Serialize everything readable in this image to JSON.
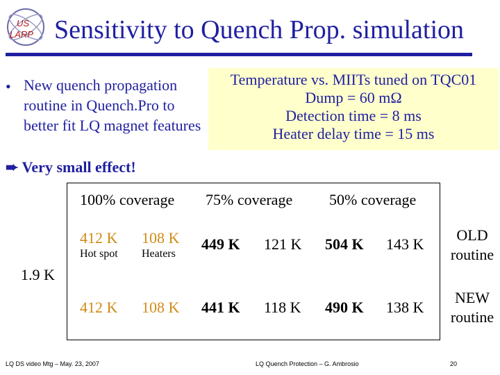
{
  "logo": {
    "text_top": "US",
    "text_bottom": "LARP"
  },
  "title": "Sensitivity to Quench Prop. simulation",
  "bullet": {
    "text": "New quench propagation routine in Quench.Pro to better fit LQ magnet features",
    "effect": "Very small effect!"
  },
  "note": {
    "lines": [
      "Temperature vs. MIITs tuned on TQC01",
      "Dump = 60 mΩ",
      "Detection time = 8 ms",
      "Heater delay time = 15 ms"
    ]
  },
  "table": {
    "headers": [
      "100% coverage",
      "75% coverage",
      "50% coverage"
    ],
    "temperature": "1.9 K",
    "sub_labels": {
      "hot_spot": "Hot spot",
      "heaters": "Heaters"
    },
    "rows": [
      {
        "values": [
          "412 K",
          "108 K",
          "449 K",
          "121 K",
          "504 K",
          "143 K"
        ],
        "label": [
          "OLD",
          "routine"
        ]
      },
      {
        "values": [
          "412 K",
          "108 K",
          "441 K",
          "118 K",
          "490 K",
          "138 K"
        ],
        "label": [
          "NEW",
          "routine"
        ]
      }
    ]
  },
  "footer": {
    "left": "LQ DS video Mtg – May. 23, 2007",
    "center": "LQ Quench Protection – G. Ambrosio",
    "page": "20"
  },
  "colors": {
    "title_blue": "#1f1fa0",
    "note_bg": "#ffffcc",
    "orange": "#d08a14"
  }
}
